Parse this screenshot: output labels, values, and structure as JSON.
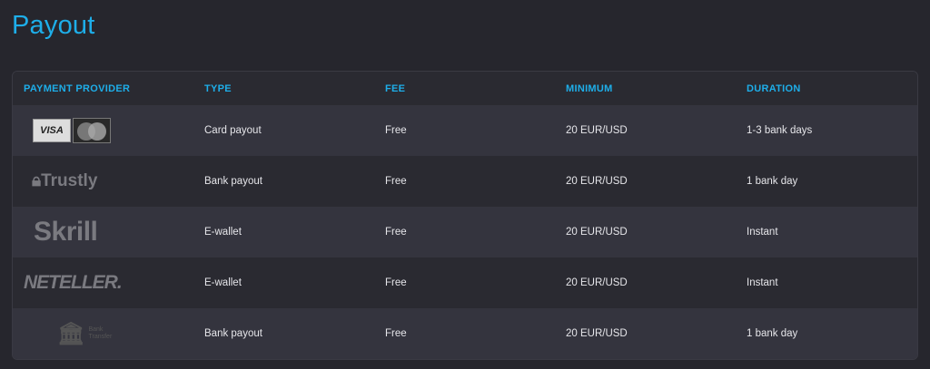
{
  "title": "Payout",
  "headers": [
    "PAYMENT PROVIDER",
    "TYPE",
    "FEE",
    "MINIMUM",
    "DURATION"
  ],
  "rows": [
    {
      "provider": "VISA / MasterCard",
      "logo": "visa-mastercard-logo",
      "type": "Card payout",
      "fee": "Free",
      "minimum": "20 EUR/USD",
      "duration": "1-3 bank days"
    },
    {
      "provider": "Trustly",
      "logo": "trustly-logo",
      "type": "Bank payout",
      "fee": "Free",
      "minimum": "20 EUR/USD",
      "duration": "1 bank day"
    },
    {
      "provider": "Skrill",
      "logo": "skrill-logo",
      "type": "E-wallet",
      "fee": "Free",
      "minimum": "20 EUR/USD",
      "duration": "Instant"
    },
    {
      "provider": "NETELLER",
      "logo": "neteller-logo",
      "type": "E-wallet",
      "fee": "Free",
      "minimum": "20 EUR/USD",
      "duration": "Instant"
    },
    {
      "provider": "Bank Transfer",
      "logo": "bank-transfer-logo",
      "type": "Bank payout",
      "fee": "Free",
      "minimum": "20 EUR/USD",
      "duration": "1 bank day"
    }
  ],
  "colors": {
    "accent": "#1eaee9",
    "background": "#26262d"
  }
}
